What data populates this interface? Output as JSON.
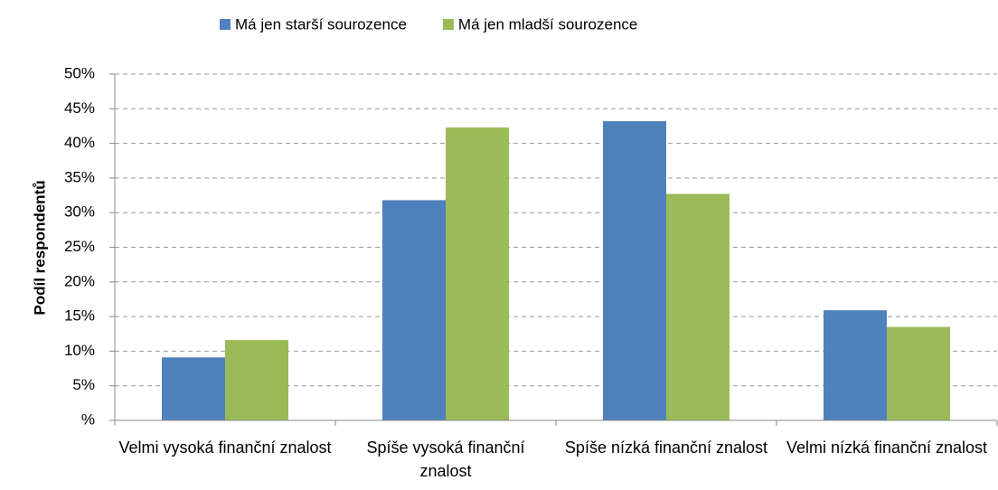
{
  "chart_data": {
    "type": "bar",
    "y_label": "Podíl respondentů",
    "categories": [
      "Velmi vysoká finanční znalost",
      "Spíše vysoká finanční znalost",
      "Spíše nízká finanční znalost",
      "Velmi nízká finanční znalost"
    ],
    "series": [
      {
        "name": "Má jen starší sourozence",
        "color": "#4f81bd",
        "values": [
          9.1,
          31.8,
          43.2,
          15.9
        ]
      },
      {
        "name": "Má jen mladší sourozence",
        "color": "#9bbb59",
        "values": [
          11.6,
          42.3,
          32.7,
          13.5
        ]
      }
    ],
    "ylim": [
      0,
      50
    ],
    "yticks": [
      {
        "value": 0,
        "label": "%"
      },
      {
        "value": 5,
        "label": "5%"
      },
      {
        "value": 10,
        "label": "10%"
      },
      {
        "value": 15,
        "label": "15%"
      },
      {
        "value": 20,
        "label": "20%"
      },
      {
        "value": 25,
        "label": "25%"
      },
      {
        "value": 30,
        "label": "30%"
      },
      {
        "value": 35,
        "label": "35%"
      },
      {
        "value": 40,
        "label": "40%"
      },
      {
        "value": 45,
        "label": "45%"
      },
      {
        "value": 50,
        "label": "50%"
      }
    ],
    "grid": true,
    "legend": "top"
  }
}
